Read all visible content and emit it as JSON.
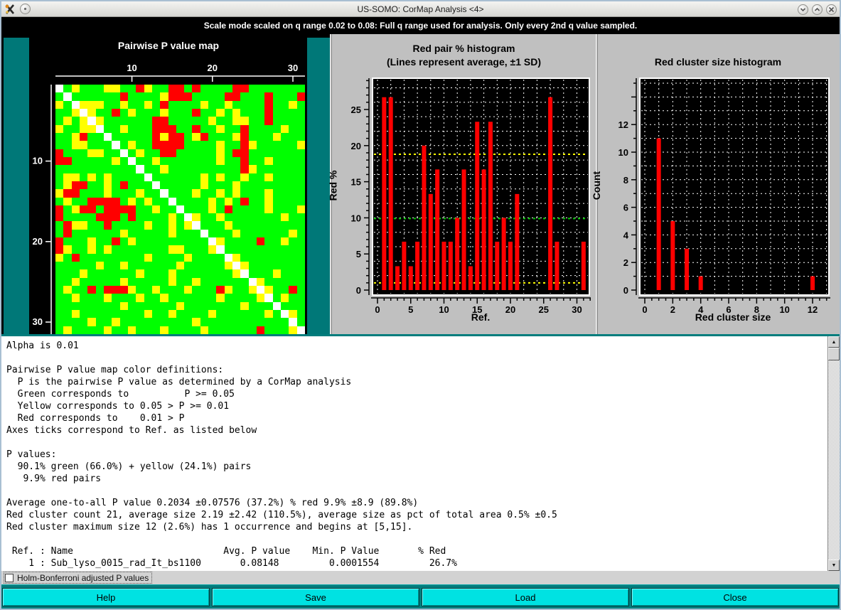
{
  "window": {
    "title": "US-SOMO: CorMap Analysis <4>"
  },
  "banner": {
    "text": "Scale mode scaled on q range 0.02 to 0.08: Full q range used for analysis. Only every 2nd q value sampled."
  },
  "chart_data": [
    {
      "type": "heatmap",
      "title": "Pairwise P value map",
      "axis_ticks": [
        10,
        20,
        30
      ],
      "colors": {
        "G": "#00ff00",
        "Y": "#ffff00",
        "R": "#ff0000",
        "W": "#ffffff"
      },
      "legend": {
        "G": "P >= 0.05",
        "Y": "0.05 > P >= 0.01",
        "R": "0.01 > P",
        "W": "diagonal (self pair)"
      },
      "rows": [
        "WGYGGGYYGGRYGGRRGRGGGGRRGGGGGGG",
        "GWGGGGGGRGGGGYRRRGGGGRRGGGRGGGR",
        "YGWYYYGGYGGYGRGGGGYGGYGGGGRGGYG",
        "GGYWYGGRGYGGGYGGGRGGYGYGGGRGGGG",
        "GYGYWYGGGGGGRRGGGGGYGGYYGGRGGGG",
        "YGGYYWGGYGGGRRRGGRGGYGGRGGGGYGG",
        "GGYRGGWGGGGGRYRRGYRGGGYRGGGYGGG",
        "GGYYGGGWGYGGRRRRGGGGYGGRYGGGGGY",
        "RGGGYYGGWGYGGRRGGGGGYGRRGGGGGGG",
        "RRGGGGGYGWGGYGGGGGGGYGGRGGYGGGG",
        "GGGGGGGGGGWGGYGGGGGGGGGRYGGGGGG",
        "GYYGYGYGGGGWGGGGGGYGYGGYGGYGGGG",
        "GYRRGGYGRGGGWGGGGGYGGGYGGGGGGGG",
        "YRRGGGYGGGYGGWGGGYGGYGYGGGYGGGG",
        "GYGGRRRRGYGYGGWGGGGYGYGRGGYGGGG",
        "RGYRRGRRRRGGYGGWGGGYGRGGGGYGGGY",
        "RGGGGRRRGRGGGGYGWYGGYGGGGGGGYGG",
        "GRYYGGRGGGGYGGYGYWGGGYGGGGGGGGG",
        "GRGGGGGGYGGGGGYGGGWGGGYGGGGGGYG",
        "RGGGYGGRGYGGGGGGGGGWYGGGGRGGYGG",
        "RYGGYGYGGGGGGGYYGGGYWGGGGGGGGGG",
        "YGRGGGGGGGGYGGGGYGGGGWYGGGGGGGG",
        "GGGGGYGGYGGGGGGYGGGGGYWYGGGGGGG",
        "GGGYGGGGGGYGGGYGGGGGGGYWGGGYGGG",
        "GGYGGGGGYGGGGGYGGYGGGGGGWYGGGGG",
        "GYGGRGRRRYGGYGGGYGGGRYGGYWYGGRG",
        "GGYGGGYGGGYGGYGGGGGGYGGGGYWGYGG",
        "GGGGGGGGYGGGGGGYGGGGGGGYGGGWGGG",
        "GGYGGGGGGGGYGGYGGGGYGGGGGGYGWYG",
        "GGGGYGGYGGGGGGGGGYGGGGGGGGGGGWG",
        "GYGGGGYGGYGGGYGGGGYGGGGGGRGGGYW"
      ]
    },
    {
      "type": "bar",
      "title": "Red pair % histogram",
      "subtitle": "(Lines represent average, ±1 SD)",
      "xlabel": "Ref.",
      "ylabel": "Red %",
      "xlim": [
        0,
        31.5
      ],
      "ylim": [
        0,
        28.5
      ],
      "x_major_ticks": [
        0,
        5,
        10,
        15,
        20,
        25,
        30
      ],
      "y_major_ticks": [
        0,
        5,
        10,
        15,
        20,
        25
      ],
      "x": [
        1,
        2,
        3,
        4,
        5,
        6,
        7,
        8,
        9,
        10,
        11,
        12,
        13,
        14,
        15,
        16,
        17,
        18,
        19,
        20,
        21,
        22,
        23,
        24,
        25,
        26,
        27,
        28,
        29,
        30,
        31
      ],
      "values": [
        26.7,
        26.7,
        3.3,
        6.7,
        3.3,
        6.7,
        20,
        13.3,
        16.7,
        6.7,
        6.7,
        10,
        16.7,
        3.3,
        23.3,
        16.7,
        23.3,
        6.7,
        10,
        6.7,
        13.3,
        0,
        0,
        0,
        0,
        26.7,
        6.7,
        0,
        0,
        0,
        6.7
      ],
      "average_line": {
        "value": 9.9,
        "color": "#00cc00"
      },
      "sd_lines": {
        "values": [
          18.8,
          1.0
        ],
        "color": "#ffff00"
      },
      "bar_color": "#ff0000",
      "grid": "dashed-white-on-black"
    },
    {
      "type": "bar",
      "title": "Red cluster size histogram",
      "xlabel": "Red cluster size",
      "ylabel": "Count",
      "xlim": [
        0,
        13.2
      ],
      "ylim": [
        0,
        12.3
      ],
      "x_major_ticks": [
        0,
        2,
        4,
        6,
        8,
        10,
        12
      ],
      "y_major_ticks": [
        0,
        2,
        4,
        6,
        8,
        10,
        12
      ],
      "x": [
        1,
        2,
        3,
        4,
        12
      ],
      "values": [
        11,
        5,
        3,
        1,
        1
      ],
      "bar_color": "#ff0000",
      "grid": "dashed-white-on-black"
    }
  ],
  "output": {
    "lines": [
      "Alpha is 0.01",
      "",
      "Pairwise P value map color definitions:",
      "  P is the pairwise P value as determined by a CorMap analysis",
      "  Green corresponds to          P >= 0.05",
      "  Yellow corresponds to 0.05 > P >= 0.01",
      "  Red corresponds to    0.01 > P",
      "Axes ticks correspond to Ref. as listed below",
      "",
      "P values:",
      "  90.1% green (66.0%) + yellow (24.1%) pairs",
      "   9.9% red pairs",
      "",
      "Average one-to-all P value 0.2034 ±0.07576 (37.2%) % red 9.9% ±8.9 (89.8%)",
      "Red cluster count 21, average size 2.19 ±2.42 (110.5%), average size as pct of total area 0.5% ±0.5",
      "Red cluster maximum size 12 (2.6%) has 1 occurrence and begins at [5,15].",
      "",
      " Ref. : Name                           Avg. P value    Min. P Value       % Red",
      "    1 : Sub_lyso_0015_rad_It_bs1100       0.08148         0.0001554         26.7%"
    ]
  },
  "checkbox": {
    "label": "Holm-Bonferroni adjusted P values",
    "checked": false
  },
  "buttons": {
    "help": "Help",
    "save": "Save",
    "load": "Load",
    "close": "Close"
  }
}
